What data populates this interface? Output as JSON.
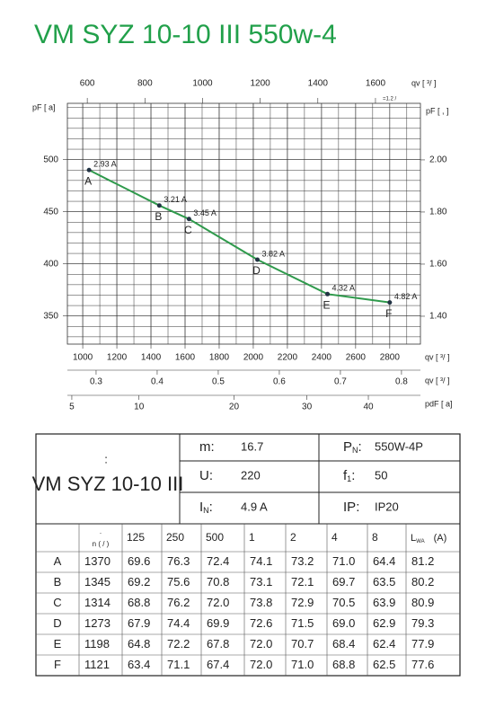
{
  "header": {
    "title": "VM SYZ 10-10 III 550w-4"
  },
  "chart_data": {
    "type": "line",
    "xlabel": "qv [ ³/ ]",
    "x2label": "qv [ ³/ ]",
    "x2note": "=1.2  /  ",
    "ylabel": "pF [  a]",
    "y2label": "pF [  ,  ]",
    "x3label": "qv [ ³/ ]",
    "x4label": "pdF [ a]",
    "x": [
      1037,
      1449,
      1623,
      2024,
      2435,
      2800
    ],
    "series": [
      {
        "name": "VM SYZ 10-10 III",
        "color": "#2f9a4c",
        "values": [
          490,
          456,
          443,
          404,
          371,
          363
        ],
        "point_names": [
          "A",
          "B",
          "C",
          "D",
          "E",
          "F"
        ],
        "point_notes": [
          "2.93 A",
          "3.21 A",
          "3.45 A",
          "3.82 A",
          "4.32 A",
          "4.82 A"
        ]
      }
    ],
    "xlim": [
      910,
      2980
    ],
    "xticks": [
      1000,
      1200,
      1400,
      1600,
      1800,
      2000,
      2200,
      2400,
      2600,
      2800
    ],
    "ylim": [
      323,
      554
    ],
    "yticks": [
      350,
      400,
      450,
      500
    ],
    "y2lim": [
      1.293,
      2.217
    ],
    "y2ticks": [
      {
        "value": 1.4,
        "label": "1.40"
      },
      {
        "value": 1.6,
        "label": "1.60"
      },
      {
        "value": 1.8,
        "label": "1.80"
      },
      {
        "value": 2,
        "label": "2.00"
      }
    ],
    "x2lim": [
      531,
      1756
    ],
    "x2ticks": [
      600,
      800,
      1000,
      1200,
      1400,
      1600
    ],
    "x3lim": [
      0.253,
      0.831
    ],
    "x3ticks": [
      0.3,
      0.4,
      0.5,
      0.6,
      0.7,
      0.8
    ],
    "x4lim": [
      4.73,
      49.6
    ],
    "x4scale": "sqrt",
    "x4ticks": [
      5,
      10,
      20,
      30,
      40
    ],
    "grid": true
  },
  "specs": {
    "colon": ":",
    "model": "VM  SYZ 10-10 III",
    "fields": [
      {
        "label": "m",
        "sub": "",
        "sep": ":",
        "value": "16.7"
      },
      {
        "label": "U",
        "sub": "",
        "sep": ":",
        "value": "220"
      },
      {
        "label": "I",
        "sub": "N",
        "sep": ":",
        "value": "4.9  A"
      },
      {
        "label": "P",
        "sub": "N",
        "sep": ":",
        "value": "550W-4P"
      },
      {
        "label": "f",
        "sub": "1",
        "sep": ":",
        "value": "50"
      },
      {
        "label": "IP",
        "sub": "",
        "sep": ":",
        "value": "IP20"
      }
    ]
  },
  "table": {
    "dot": ".",
    "header": [
      "n  (  /  )",
      "125",
      "250",
      "500",
      "1",
      "2",
      "4",
      "8"
    ],
    "last_header": {
      "label": "L",
      "sub": "WA",
      "unit": "(A)"
    },
    "rows": [
      [
        "A",
        "1370",
        "69.6",
        "76.3",
        "72.4",
        "74.1",
        "73.2",
        "71.0",
        "64.4",
        "81.2"
      ],
      [
        "B",
        "1345",
        "69.2",
        "75.6",
        "70.8",
        "73.1",
        "72.1",
        "69.7",
        "63.5",
        "80.2"
      ],
      [
        "C",
        "1314",
        "68.8",
        "76.2",
        "72.0",
        "73.8",
        "72.9",
        "70.5",
        "63.9",
        "80.9"
      ],
      [
        "D",
        "1273",
        "67.9",
        "74.4",
        "69.9",
        "72.6",
        "71.5",
        "69.0",
        "62.9",
        "79.3"
      ],
      [
        "E",
        "1198",
        "64.8",
        "72.2",
        "67.8",
        "72.0",
        "70.7",
        "68.4",
        "62.4",
        "77.9"
      ],
      [
        "F",
        "1121",
        "63.4",
        "71.1",
        "67.4",
        "72.0",
        "71.0",
        "68.8",
        "62.5",
        "77.6"
      ]
    ]
  }
}
